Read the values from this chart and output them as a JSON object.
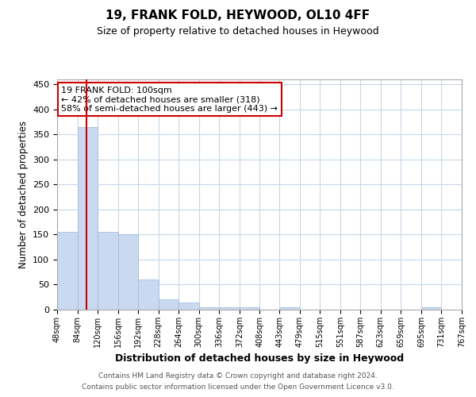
{
  "title": "19, FRANK FOLD, HEYWOOD, OL10 4FF",
  "subtitle": "Size of property relative to detached houses in Heywood",
  "xlabel": "Distribution of detached houses by size in Heywood",
  "ylabel": "Number of detached properties",
  "footnote1": "Contains HM Land Registry data © Crown copyright and database right 2024.",
  "footnote2": "Contains public sector information licensed under the Open Government Licence v3.0.",
  "annotation_line1": "19 FRANK FOLD: 100sqm",
  "annotation_line2": "← 42% of detached houses are smaller (318)",
  "annotation_line3": "58% of semi-detached houses are larger (443) →",
  "bar_edges": [
    48,
    84,
    120,
    156,
    192,
    228,
    264,
    300,
    336,
    372,
    408,
    443,
    479,
    515,
    551,
    587,
    623,
    659,
    695,
    731,
    767
  ],
  "bar_heights": [
    155,
    365,
    155,
    150,
    60,
    20,
    15,
    5,
    5,
    5,
    0,
    5,
    0,
    0,
    0,
    0,
    0,
    0,
    5,
    0
  ],
  "property_size": 100,
  "bar_color": "#c8d9f0",
  "bar_edge_color": "#a0b8d8",
  "line_color": "#cc0000",
  "annotation_box_color": "#cc0000",
  "ylim": [
    0,
    460
  ],
  "yticks": [
    0,
    50,
    100,
    150,
    200,
    250,
    300,
    350,
    400,
    450
  ],
  "background_color": "#ffffff",
  "grid_color": "#c8d8e8"
}
